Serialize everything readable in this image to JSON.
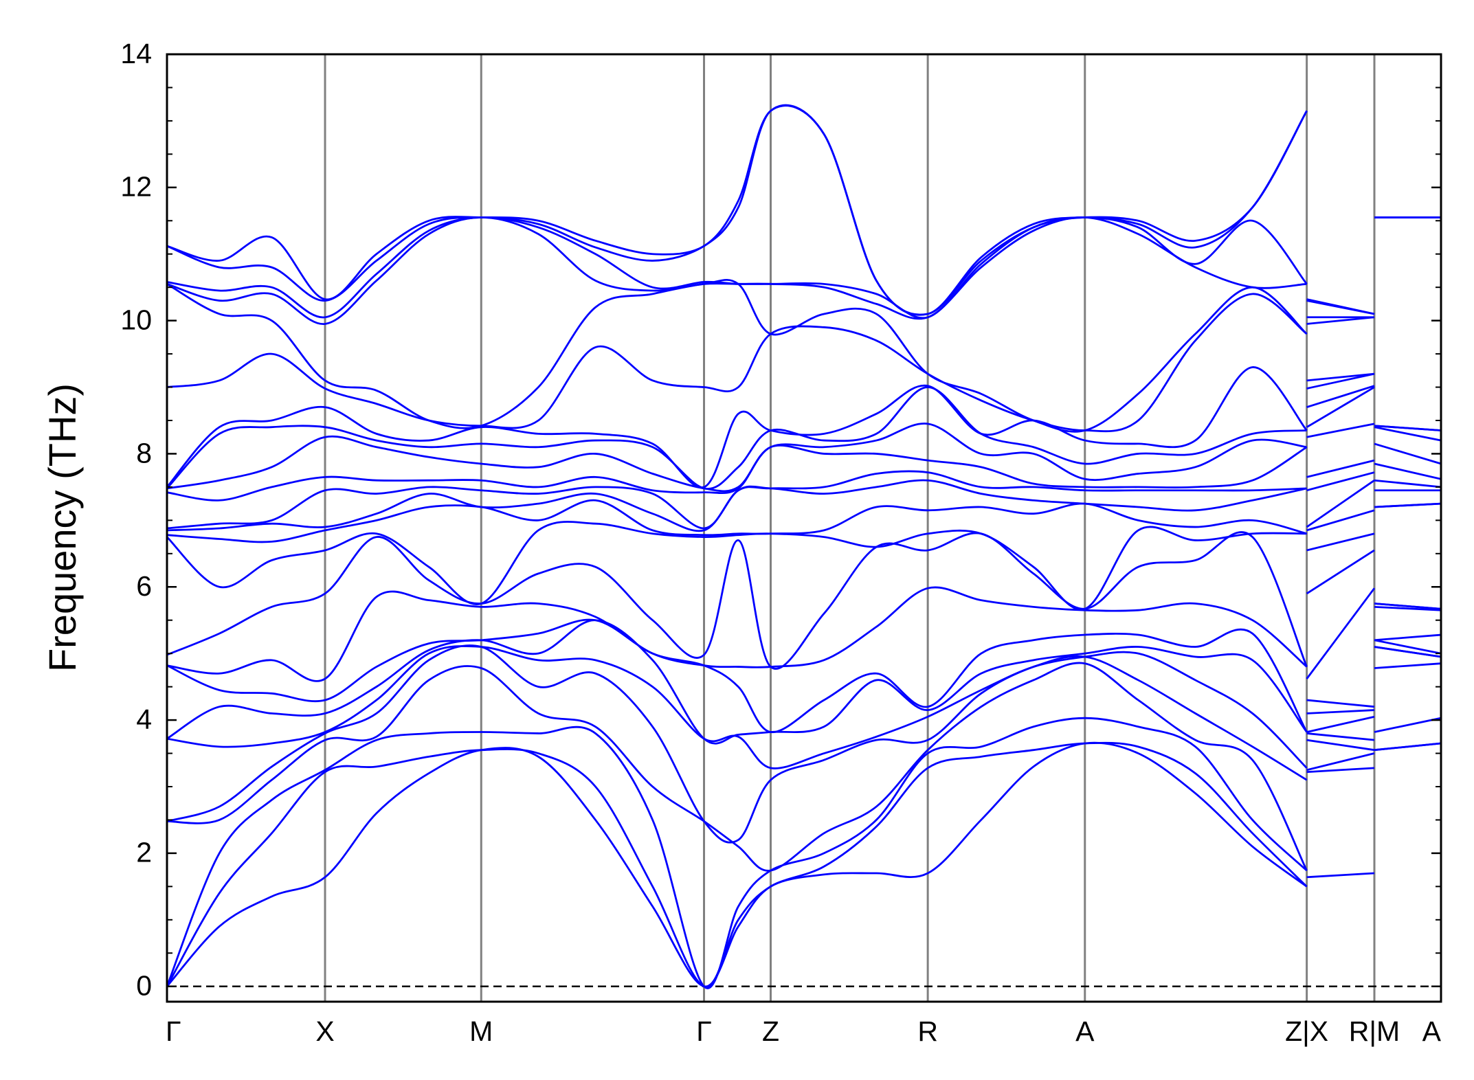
{
  "chart_data": {
    "type": "line",
    "ylabel": "Frequency (THz)",
    "color": "#0000ff",
    "grid_color": "#808080",
    "hline": 0,
    "xlim": [
      0,
      13.38
    ],
    "ylim": [
      -0.23,
      14
    ],
    "yticks": [
      0,
      2,
      4,
      6,
      8,
      10,
      12,
      14
    ],
    "yminorticks": [
      0.5,
      1,
      1.5,
      2.5,
      3,
      3.5,
      4.5,
      5,
      5.5,
      6.5,
      7,
      7.5,
      8.5,
      9,
      9.5,
      10.5,
      11,
      11.5,
      12.5,
      13,
      13.5
    ],
    "xticks": [
      {
        "value": 0,
        "label": "Γ"
      },
      {
        "value": 1.66,
        "label": "X"
      },
      {
        "value": 3.3,
        "label": "M"
      },
      {
        "value": 5.64,
        "label": "Γ"
      },
      {
        "value": 6.34,
        "label": "Z"
      },
      {
        "value": 7.99,
        "label": "R"
      },
      {
        "value": 9.64,
        "label": "A"
      },
      {
        "value": 11.97,
        "label": "Z|X"
      },
      {
        "value": 12.68,
        "label": "R|M"
      },
      {
        "value": 13.38,
        "label": "A"
      }
    ],
    "x": [
      0,
      0.55,
      1.1,
      1.66,
      2.2,
      2.75,
      3.3,
      3.9,
      4.5,
      5.1,
      5.64,
      6.0,
      6.34,
      6.9,
      7.45,
      7.99,
      8.55,
      9.1,
      9.64,
      10.2,
      10.8,
      11.4,
      11.97,
      11.97,
      11.97,
      12.68,
      12.68,
      12.68,
      13.38
    ],
    "series": [
      {
        "values": [
          0,
          0.9,
          1.35,
          1.64,
          2.6,
          3.2,
          3.55,
          3.45,
          2.5,
          1.2,
          0,
          0.9,
          1.5,
          1.68,
          1.7,
          1.7,
          2.5,
          3.3,
          3.65,
          3.5,
          2.9,
          2.1,
          1.5,
          null,
          1.64,
          1.7,
          null,
          3.55,
          3.65
        ]
      },
      {
        "values": [
          0,
          1.4,
          2.3,
          3.22,
          3.3,
          3.45,
          3.55,
          3.5,
          3.0,
          1.5,
          0,
          1.0,
          1.5,
          1.8,
          2.4,
          3.28,
          3.45,
          3.55,
          3.65,
          3.6,
          3.2,
          2.3,
          1.5,
          null,
          3.22,
          3.28,
          null,
          3.55,
          3.65
        ]
      },
      {
        "values": [
          0,
          2.0,
          2.8,
          3.25,
          3.7,
          3.8,
          3.82,
          3.8,
          3.8,
          2.5,
          0,
          1.2,
          1.74,
          2.0,
          2.5,
          3.5,
          3.6,
          3.9,
          4.03,
          3.9,
          3.6,
          2.5,
          1.74,
          null,
          3.25,
          3.5,
          null,
          3.82,
          4.03
        ]
      },
      {
        "values": [
          2.48,
          2.5,
          3.1,
          3.7,
          3.75,
          4.6,
          4.78,
          4.1,
          3.9,
          3.0,
          2.48,
          2.1,
          1.74,
          2.3,
          2.7,
          3.55,
          4.2,
          4.6,
          4.85,
          4.3,
          3.7,
          3.4,
          1.74,
          null,
          3.7,
          3.55,
          null,
          4.78,
          4.85
        ]
      },
      {
        "values": [
          2.48,
          2.7,
          3.3,
          3.8,
          4.1,
          4.9,
          5.1,
          4.5,
          4.7,
          3.9,
          2.48,
          2.2,
          3.1,
          3.4,
          3.7,
          3.7,
          4.4,
          4.8,
          4.95,
          4.6,
          4.1,
          3.6,
          3.1,
          null,
          3.8,
          3.7,
          null,
          5.1,
          4.95
        ]
      },
      {
        "values": [
          3.72,
          3.6,
          3.65,
          3.82,
          4.3,
          5.0,
          5.1,
          4.9,
          4.9,
          4.5,
          3.72,
          3.75,
          3.28,
          3.5,
          3.75,
          4.05,
          4.45,
          4.8,
          4.95,
          5.0,
          4.6,
          4.1,
          3.28,
          null,
          3.82,
          4.05,
          null,
          5.1,
          4.95
        ]
      },
      {
        "values": [
          3.72,
          4.2,
          4.1,
          4.1,
          4.5,
          5.05,
          5.2,
          5.0,
          5.5,
          4.9,
          3.72,
          3.78,
          3.82,
          3.9,
          4.6,
          4.15,
          4.7,
          4.9,
          5.0,
          5.1,
          4.95,
          4.9,
          3.82,
          null,
          4.1,
          4.15,
          null,
          5.2,
          5.0
        ]
      },
      {
        "values": [
          4.82,
          4.45,
          4.4,
          4.3,
          4.8,
          5.15,
          5.2,
          5.3,
          5.5,
          5.0,
          4.82,
          4.5,
          3.82,
          4.3,
          4.7,
          4.2,
          5.0,
          5.2,
          5.28,
          5.28,
          5.1,
          5.3,
          3.82,
          null,
          4.3,
          4.2,
          null,
          5.2,
          5.28
        ]
      },
      {
        "values": [
          4.82,
          4.7,
          4.9,
          4.62,
          5.85,
          5.8,
          5.7,
          5.75,
          5.55,
          5.0,
          4.82,
          4.8,
          4.8,
          4.9,
          5.4,
          5.98,
          5.8,
          5.7,
          5.65,
          5.65,
          5.75,
          5.5,
          4.8,
          null,
          4.62,
          5.98,
          null,
          5.7,
          5.65
        ]
      },
      {
        "values": [
          4.98,
          5.3,
          5.7,
          5.9,
          6.75,
          6.1,
          5.75,
          6.2,
          6.3,
          5.5,
          4.98,
          6.7,
          4.8,
          5.6,
          6.6,
          6.55,
          6.8,
          6.2,
          5.67,
          6.3,
          6.4,
          6.75,
          4.8,
          null,
          5.9,
          6.55,
          null,
          5.75,
          5.67
        ]
      },
      {
        "values": [
          6.75,
          6.0,
          6.4,
          6.55,
          6.8,
          6.3,
          5.75,
          6.85,
          6.95,
          6.8,
          6.75,
          6.78,
          6.8,
          6.75,
          6.6,
          6.8,
          6.8,
          6.3,
          5.67,
          6.85,
          6.7,
          6.8,
          6.8,
          null,
          6.55,
          6.8,
          null,
          5.75,
          5.67
        ]
      },
      {
        "values": [
          6.78,
          6.72,
          6.68,
          6.85,
          7.0,
          7.2,
          7.2,
          7.0,
          7.3,
          6.85,
          6.78,
          6.8,
          6.8,
          6.85,
          7.2,
          7.15,
          7.2,
          7.1,
          7.25,
          7.0,
          6.9,
          7.0,
          6.8,
          null,
          6.85,
          7.15,
          null,
          7.2,
          7.25
        ]
      },
      {
        "values": [
          6.85,
          6.88,
          6.95,
          6.9,
          7.1,
          7.4,
          7.2,
          7.25,
          7.4,
          7.1,
          6.85,
          7.45,
          7.48,
          7.4,
          7.5,
          7.6,
          7.4,
          7.3,
          7.25,
          7.2,
          7.15,
          7.3,
          7.48,
          null,
          6.9,
          7.6,
          null,
          7.2,
          7.25
        ]
      },
      {
        "values": [
          6.88,
          6.95,
          7.0,
          7.45,
          7.4,
          7.5,
          7.45,
          7.4,
          7.5,
          7.4,
          6.88,
          7.45,
          7.48,
          7.5,
          7.7,
          7.72,
          7.5,
          7.5,
          7.45,
          7.45,
          7.45,
          7.45,
          7.48,
          null,
          7.45,
          7.72,
          null,
          7.45,
          7.45
        ]
      },
      {
        "values": [
          7.42,
          7.3,
          7.5,
          7.65,
          7.6,
          7.6,
          7.6,
          7.5,
          7.65,
          7.45,
          7.42,
          7.48,
          8.1,
          8.0,
          8.0,
          7.9,
          7.8,
          7.55,
          7.5,
          7.5,
          7.5,
          7.6,
          8.1,
          null,
          7.65,
          7.9,
          null,
          7.6,
          7.5
        ]
      },
      {
        "values": [
          7.48,
          7.6,
          7.8,
          8.25,
          8.1,
          7.95,
          7.85,
          7.8,
          8.0,
          7.7,
          7.48,
          7.5,
          8.1,
          8.1,
          8.2,
          8.45,
          8.0,
          8.0,
          7.62,
          7.7,
          7.8,
          8.2,
          8.1,
          null,
          8.25,
          8.45,
          null,
          7.85,
          7.62
        ]
      },
      {
        "values": [
          7.48,
          8.3,
          8.4,
          8.4,
          8.2,
          8.1,
          8.15,
          8.1,
          8.2,
          8.1,
          7.48,
          7.8,
          8.35,
          8.2,
          8.3,
          9.0,
          8.3,
          8.1,
          7.85,
          8.0,
          8.0,
          8.3,
          8.35,
          null,
          8.4,
          9.0,
          null,
          8.15,
          7.85
        ]
      },
      {
        "values": [
          7.5,
          8.4,
          8.5,
          8.7,
          8.3,
          8.2,
          8.4,
          8.3,
          8.3,
          8.15,
          7.5,
          8.6,
          8.35,
          8.3,
          8.6,
          9.02,
          8.3,
          8.5,
          8.2,
          8.15,
          8.2,
          9.3,
          8.35,
          null,
          8.7,
          9.02,
          null,
          8.4,
          8.2
        ]
      },
      {
        "values": [
          9.0,
          9.1,
          9.5,
          8.98,
          8.75,
          8.5,
          8.42,
          8.5,
          9.6,
          9.1,
          9.0,
          9.0,
          9.8,
          9.9,
          9.7,
          9.2,
          8.8,
          8.5,
          8.35,
          8.5,
          9.7,
          10.4,
          9.8,
          null,
          8.98,
          9.2,
          null,
          8.42,
          8.35
        ]
      },
      {
        "values": [
          10.55,
          10.1,
          10.0,
          9.1,
          8.95,
          8.5,
          8.42,
          9.0,
          10.2,
          10.4,
          10.55,
          10.55,
          9.8,
          10.1,
          10.1,
          9.2,
          8.9,
          8.5,
          8.35,
          8.9,
          9.8,
          10.5,
          9.8,
          null,
          9.1,
          9.2,
          null,
          8.42,
          8.35
        ]
      },
      {
        "values": [
          10.55,
          10.3,
          10.4,
          9.95,
          10.6,
          11.3,
          11.55,
          11.3,
          10.6,
          10.45,
          10.55,
          10.55,
          10.55,
          10.5,
          10.25,
          10.05,
          10.8,
          11.35,
          11.55,
          11.3,
          10.8,
          10.5,
          10.55,
          null,
          9.95,
          10.05,
          null,
          11.55,
          11.55
        ]
      },
      {
        "values": [
          10.58,
          10.45,
          10.5,
          10.05,
          10.7,
          11.35,
          11.55,
          11.4,
          11.0,
          10.5,
          10.58,
          10.55,
          10.55,
          10.55,
          10.4,
          10.05,
          10.85,
          11.4,
          11.55,
          11.4,
          10.85,
          11.5,
          10.55,
          null,
          10.05,
          10.05,
          null,
          11.55,
          11.55
        ]
      },
      {
        "values": [
          11.12,
          10.8,
          10.8,
          10.3,
          10.9,
          11.45,
          11.55,
          11.45,
          11.1,
          10.9,
          11.12,
          11.7,
          13.15,
          12.8,
          10.6,
          10.1,
          10.9,
          11.4,
          11.55,
          11.45,
          11.1,
          11.7,
          13.15,
          null,
          10.3,
          10.1,
          null,
          11.55,
          11.55
        ]
      },
      {
        "values": [
          11.12,
          10.9,
          11.25,
          10.32,
          11.0,
          11.5,
          11.55,
          11.5,
          11.2,
          11.0,
          11.12,
          11.8,
          13.15,
          12.8,
          10.6,
          10.1,
          10.95,
          11.45,
          11.55,
          11.5,
          11.2,
          11.7,
          13.15,
          null,
          10.32,
          10.1,
          null,
          11.55,
          11.55
        ]
      }
    ]
  }
}
